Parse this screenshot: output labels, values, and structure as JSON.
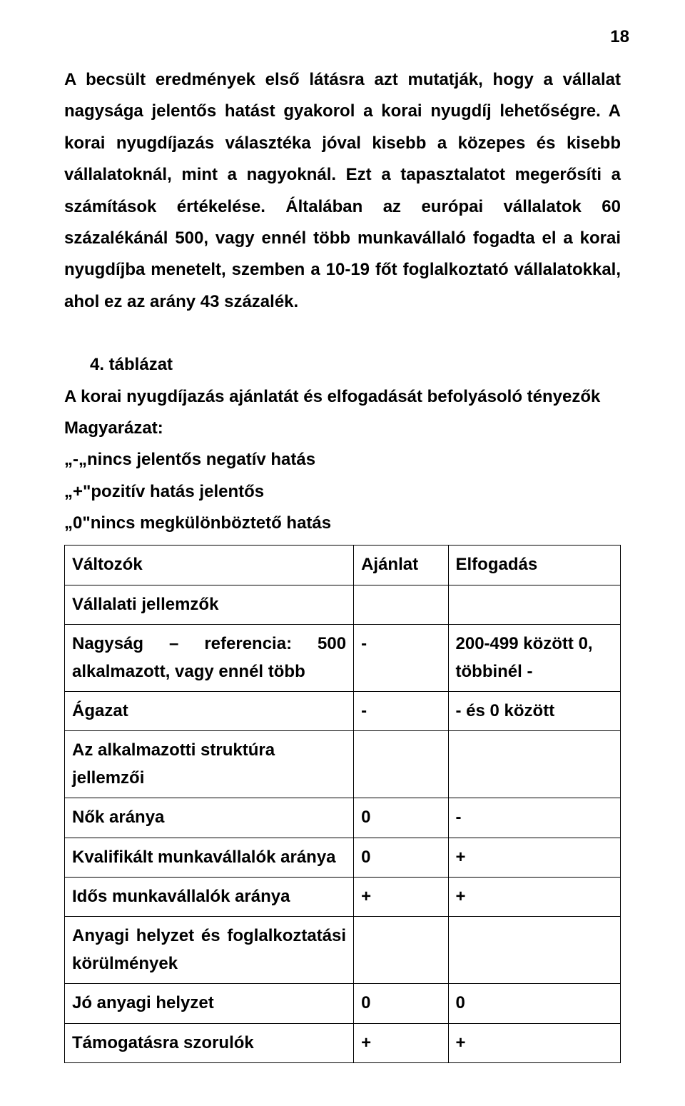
{
  "page_number": "18",
  "paragraph": "A becsült eredmények első látásra azt mutatják, hogy a vállalat nagysága jelentős hatást gyakorol a korai nyugdíj lehetőségre. A korai nyugdíjazás választéka jóval kisebb a közepes és kisebb vállalatoknál, mint a nagyoknál. Ezt a tapasztalatot megerősíti a számítások értékelése. Általában az európai vállalatok 60 százalékánál 500, vagy ennél több munkavállaló fogadta el a korai nyugdíjba menetelt, szemben a 10-19 főt foglalkoztató vállalatokkal, ahol ez az arány 43 százalék.",
  "table_block": {
    "heading": "4. táblázat",
    "title": "A korai nyugdíjazás ajánlatát és elfogadását befolyásoló tényezők",
    "legend_label": "Magyarázat:",
    "legend_items": [
      "„-„nincs jelentős negatív hatás",
      "„+\"pozitív hatás jelentős",
      "„0\"nincs megkülönböztető hatás"
    ],
    "columns": [
      "Változók",
      "Ajánlat",
      "Elfogadás"
    ],
    "rows": [
      {
        "c0": "Vállalati jellemzők",
        "c1": "",
        "c2": ""
      },
      {
        "c0": "Nagyság – referencia: 500 alkalmazott, vagy ennél több",
        "c1": "-",
        "c2": "200-499 között 0, többinél -"
      },
      {
        "c0": "Ágazat",
        "c1": "-",
        "c2": "- és 0 között"
      },
      {
        "c0": "Az alkalmazotti struktúra jellemzői",
        "c1": "",
        "c2": ""
      },
      {
        "c0": "Nők aránya",
        "c1": "0",
        "c2": "-"
      },
      {
        "c0": "Kvalifikált munkavállalók aránya",
        "c1": "0",
        "c2": "+"
      },
      {
        "c0": "Idős munkavállalók aránya",
        "c1": "+",
        "c2": "+"
      },
      {
        "c0": "Anyagi helyzet és foglalkoztatási körülmények",
        "c1": "",
        "c2": ""
      },
      {
        "c0": "Jó anyagi helyzet",
        "c1": "0",
        "c2": "0"
      },
      {
        "c0": "Támogatásra szorulók",
        "c1": "+",
        "c2": "+"
      }
    ]
  },
  "style": {
    "background_color": "#ffffff",
    "text_color": "#000000",
    "border_color": "#000000",
    "font_family": "Arial",
    "body_fontsize_pt": 18,
    "body_fontweight": "bold",
    "line_height": 1.85
  }
}
